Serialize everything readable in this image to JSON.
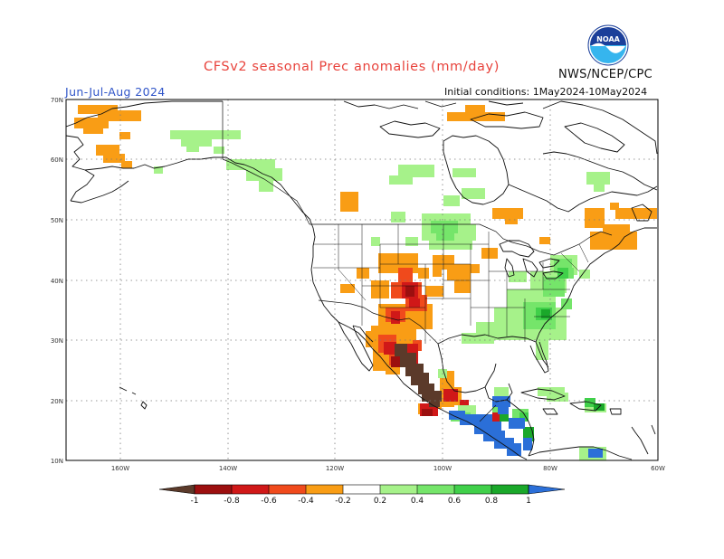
{
  "header": {
    "title": "CFSv2 seasonal Prec anomalies (mm/day)",
    "season": "Jun-Jul-Aug 2024",
    "agency": "NWS/NCEP/CPC",
    "initial_conditions": "Initial conditions:  1May2024-10May2024",
    "logo_text": "NOAA"
  },
  "map": {
    "lat_labels": [
      "70N",
      "60N",
      "50N",
      "40N",
      "30N",
      "20N",
      "10N"
    ],
    "lon_labels": [
      "160W",
      "140W",
      "120W",
      "100W",
      "80W",
      "60W"
    ],
    "lat_range": [
      10,
      70
    ],
    "lon_range": [
      -170,
      -60
    ],
    "gridlines": "dotted",
    "anomaly_regions": [
      {
        "region": "Western Alaska",
        "sign": "wet-deficit",
        "level": -0.3
      },
      {
        "region": "Southern Rockies / New Mexico",
        "sign": "dry",
        "level": -0.7
      },
      {
        "region": "Sierra Madre Occidental, Mexico",
        "sign": "dry",
        "level": -1.0
      },
      {
        "region": "Central Plains",
        "sign": "dry",
        "level": -0.3
      },
      {
        "region": "New England / Maritimes",
        "sign": "dry",
        "level": -0.3
      },
      {
        "region": "Southeast US",
        "sign": "wet",
        "level": 0.4
      },
      {
        "region": "Mid-Atlantic",
        "sign": "wet",
        "level": 0.5
      },
      {
        "region": "Central America",
        "sign": "wet",
        "level": 1.0
      },
      {
        "region": "Canadian Prairies / Northern Plains",
        "sign": "wet",
        "level": 0.3
      }
    ]
  },
  "colorbar": {
    "labels": [
      "-1",
      "-0.8",
      "-0.6",
      "-0.4",
      "-0.2",
      "0.2",
      "0.4",
      "0.6",
      "0.8",
      "1"
    ],
    "colors": {
      "below_-1": "#5b3a2a",
      "-1_to_-0.8": "#9c0f0f",
      "-0.8_to_-0.6": "#d01818",
      "-0.6_to_-0.4": "#f04a1c",
      "-0.4_to_-0.2": "#f99d15",
      "-0.2_to_0.2": "#ffffff",
      "0.2_to_0.4": "#a6f28a",
      "0.4_to_0.6": "#75e56a",
      "0.6_to_0.8": "#40d04a",
      "0.8_to_1": "#1aa82a",
      "above_1": "#2b6fd8"
    }
  }
}
